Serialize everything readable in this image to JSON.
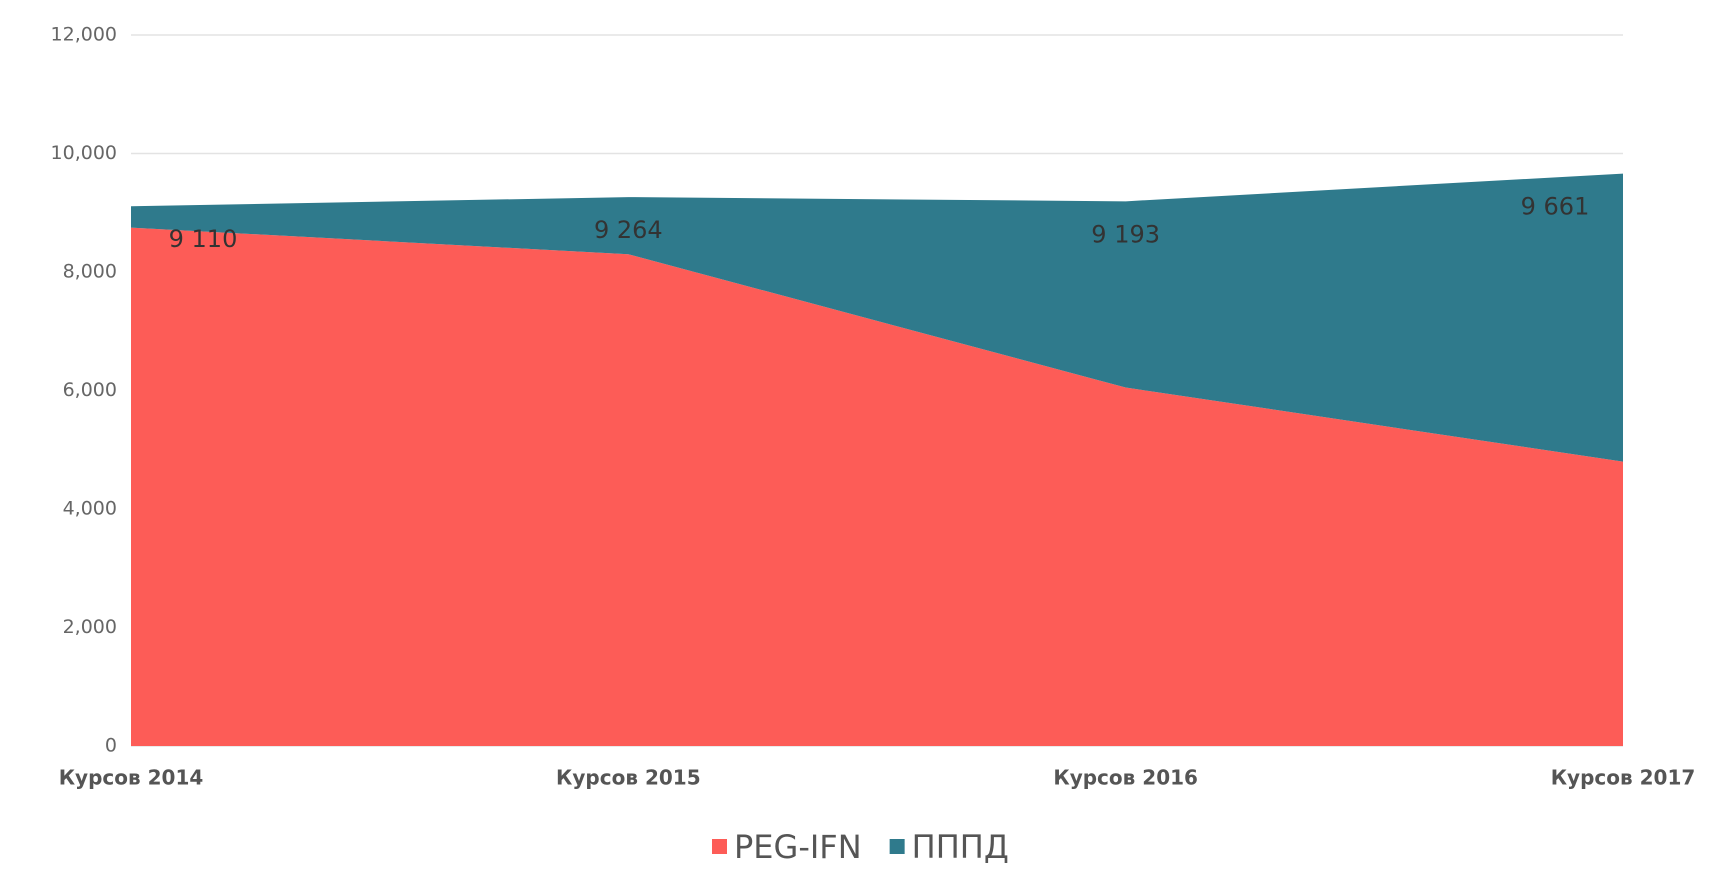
{
  "chart_data": {
    "type": "stacked_area",
    "categories": [
      "Курсов 2014",
      "Курсов 2015",
      "Курсов 2016",
      "Курсов 2017"
    ],
    "series": [
      {
        "name": "PEG-IFN",
        "color": "#fd5c57",
        "values": [
          8750,
          8300,
          6050,
          4800
        ]
      },
      {
        "name": "ПППД",
        "color": "#2f7a8c",
        "values": [
          360,
          964,
          3143,
          4861
        ]
      }
    ],
    "totals": {
      "values": [
        9110,
        9264,
        9193,
        9661
      ],
      "value_labels": [
        "9 110",
        "9 264",
        "9 193",
        "9 661"
      ]
    },
    "ylim": [
      0,
      12000
    ],
    "yticks": [
      0,
      {
        "value": 2000,
        "label": "2,000"
      },
      {
        "value": 4000,
        "label": "4,000"
      },
      {
        "value": 6000,
        "label": "6,000"
      },
      {
        "value": 8000,
        "label": "8,000"
      },
      {
        "value": 10000,
        "label": "10,000"
      },
      {
        "value": 12000,
        "label": "12,000"
      }
    ],
    "grid": true,
    "legend": "bottom"
  }
}
